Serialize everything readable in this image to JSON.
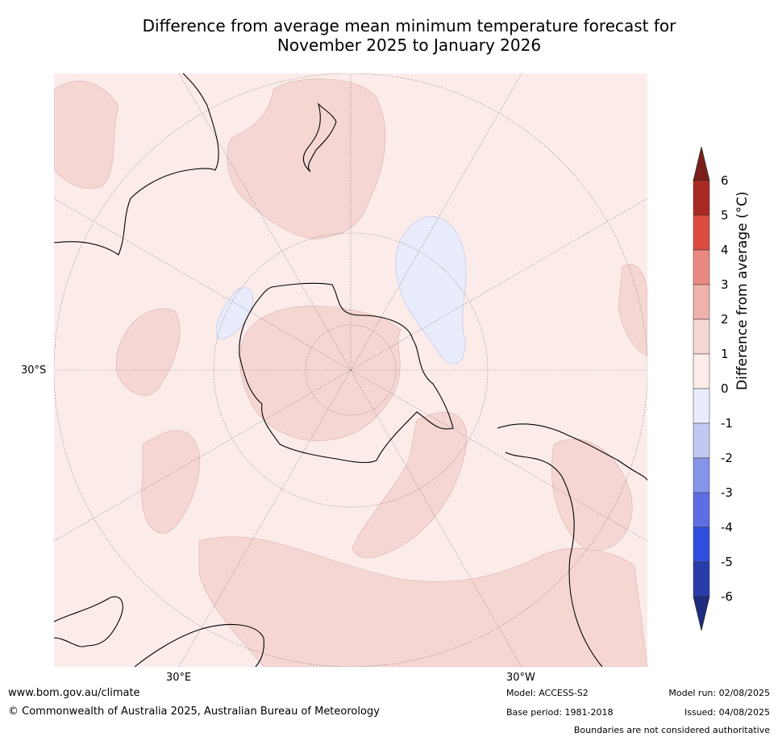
{
  "title": {
    "line1": "Difference from average mean minimum temperature forecast for",
    "line2": "November 2025 to January 2026"
  },
  "map": {
    "lat_labels": [
      "30°S"
    ],
    "lon_labels": [
      "30°E",
      "30°W"
    ],
    "background_color": "#fbecea"
  },
  "colorbar": {
    "label": "Difference from average (°C)",
    "ticks": [
      "6",
      "5",
      "4",
      "3",
      "2",
      "1",
      "0",
      "-1",
      "-2",
      "-3",
      "-4",
      "-5",
      "-6"
    ],
    "colors": [
      "#7a1f19",
      "#a92a22",
      "#dc4c40",
      "#e98a82",
      "#efb2ab",
      "#f5d6d3",
      "#fbecea",
      "#e8ecfb",
      "#c1c9f3",
      "#8595ea",
      "#5c6fe2",
      "#2f50df",
      "#283da9",
      "#1e2c7f"
    ]
  },
  "footer": {
    "website": "www.bom.gov.au/climate",
    "copyright": "© Commonwealth of Australia 2025, Australian Bureau of Meteorology",
    "model": "Model: ACCESS-S2",
    "base_period": "Base period: 1981-2018",
    "model_run": "Model run: 02/08/2025",
    "issued": "Issued: 04/08/2025",
    "disclaimer": "Boundaries are not considered authoritative"
  }
}
